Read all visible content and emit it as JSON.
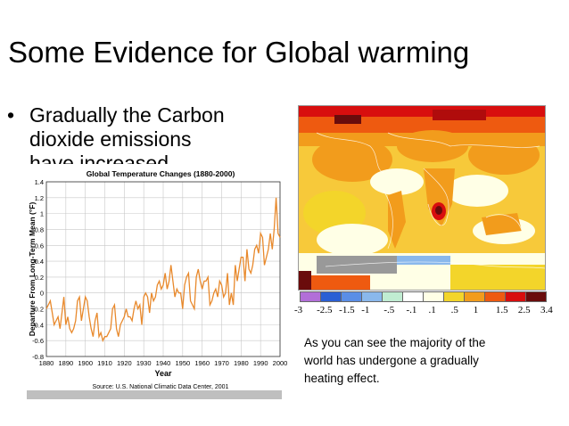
{
  "slide": {
    "title": "Some Evidence for Global warming",
    "bullet_marker": "•",
    "bullet_lines": [
      "Gradually the Carbon",
      "dioxide emissions",
      "have increased"
    ],
    "caption_lines": [
      "As you can see the majority of the",
      "world has undergone a gradually",
      "heating effect."
    ]
  },
  "map_legend": {
    "labels": [
      "-3",
      "-2.5",
      "-1.5",
      "-1",
      "-.5",
      "-.1",
      ".1",
      ".5",
      "1",
      "1.5",
      "2.5",
      "3.4"
    ],
    "colors": [
      "#b26fd8",
      "#2a5fd4",
      "#5a8ee6",
      "#8ab8ec",
      "#c0ecd2",
      "#ffffff",
      "#ffffe6",
      "#f3d52a",
      "#f29c1c",
      "#ee5a10",
      "#d80e0e",
      "#6a0c0c"
    ]
  },
  "chart_data": {
    "type": "line",
    "title": "Global Temperature Changes (1880-2000)",
    "xlabel": "Year",
    "ylabel": "Departure From Long-Term Mean (°F)",
    "source": "Source: U.S. National Climatic Data Center, 2001",
    "xlim": [
      1880,
      2000
    ],
    "ylim": [
      -0.8,
      1.4
    ],
    "xticks": [
      "1880",
      "1890",
      "1900",
      "1910",
      "1920",
      "1930",
      "1940",
      "1950",
      "1960",
      "1970",
      "1980",
      "1990",
      "2000"
    ],
    "yticks": [
      "1.4",
      "1.2",
      "1",
      "0.8",
      "0.6",
      "0.4",
      "0.2",
      "0",
      "-0.2",
      "-0.4",
      "-0.6",
      "-0.8"
    ],
    "color": "#e8892c",
    "series": [
      {
        "x": [
          1880,
          1881,
          1882,
          1883,
          1884,
          1885,
          1886,
          1887,
          1888,
          1889,
          1890,
          1891,
          1892,
          1893,
          1894,
          1895,
          1896,
          1897,
          1898,
          1899,
          1900,
          1901,
          1902,
          1903,
          1904,
          1905,
          1906,
          1907,
          1908,
          1909,
          1910,
          1911,
          1912,
          1913,
          1914,
          1915,
          1916,
          1917,
          1918,
          1919,
          1920,
          1921,
          1922,
          1923,
          1924,
          1925,
          1926,
          1927,
          1928,
          1929,
          1930,
          1931,
          1932,
          1933,
          1934,
          1935,
          1936,
          1937,
          1938,
          1939,
          1940,
          1941,
          1942,
          1943,
          1944,
          1945,
          1946,
          1947,
          1948,
          1949,
          1950,
          1951,
          1952,
          1953,
          1954,
          1955,
          1956,
          1957,
          1958,
          1959,
          1960,
          1961,
          1962,
          1963,
          1964,
          1965,
          1966,
          1967,
          1968,
          1969,
          1970,
          1971,
          1972,
          1973,
          1974,
          1975,
          1976,
          1977,
          1978,
          1979,
          1980,
          1981,
          1982,
          1983,
          1984,
          1985,
          1986,
          1987,
          1988,
          1989,
          1990,
          1991,
          1992,
          1993,
          1994,
          1995,
          1996,
          1997,
          1998,
          1999,
          2000
        ],
        "values": [
          -0.2,
          -0.15,
          -0.1,
          -0.25,
          -0.4,
          -0.35,
          -0.3,
          -0.45,
          -0.25,
          -0.05,
          -0.4,
          -0.3,
          -0.45,
          -0.5,
          -0.45,
          -0.35,
          -0.1,
          -0.05,
          -0.35,
          -0.2,
          -0.05,
          -0.1,
          -0.3,
          -0.45,
          -0.55,
          -0.35,
          -0.25,
          -0.55,
          -0.5,
          -0.6,
          -0.55,
          -0.55,
          -0.5,
          -0.45,
          -0.2,
          -0.15,
          -0.45,
          -0.55,
          -0.4,
          -0.35,
          -0.3,
          -0.2,
          -0.3,
          -0.3,
          -0.35,
          -0.2,
          -0.1,
          -0.2,
          -0.15,
          -0.4,
          -0.05,
          0.0,
          -0.05,
          -0.25,
          0.0,
          -0.1,
          -0.05,
          0.1,
          0.15,
          0.05,
          0.1,
          0.25,
          0.05,
          0.15,
          0.35,
          0.15,
          -0.05,
          0.05,
          0.0,
          0.0,
          -0.2,
          0.1,
          0.2,
          0.25,
          -0.1,
          -0.15,
          -0.2,
          0.2,
          0.3,
          0.15,
          0.05,
          0.15,
          0.15,
          0.2,
          -0.15,
          -0.1,
          0.0,
          0.05,
          -0.05,
          0.15,
          0.1,
          -0.05,
          0.0,
          0.25,
          -0.15,
          0.0,
          -0.15,
          0.35,
          0.15,
          0.3,
          0.45,
          0.45,
          0.15,
          0.55,
          0.3,
          0.25,
          0.35,
          0.55,
          0.6,
          0.5,
          0.75,
          0.7,
          0.35,
          0.45,
          0.55,
          0.75,
          0.55,
          0.8,
          1.2,
          0.75,
          0.7
        ]
      }
    ]
  }
}
